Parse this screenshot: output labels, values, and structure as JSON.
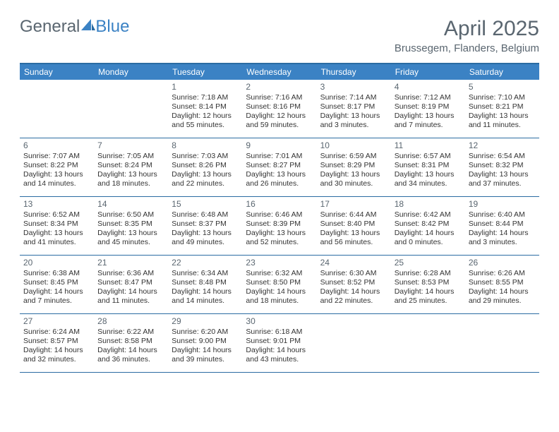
{
  "brand": {
    "word1": "General",
    "word2": "Blue"
  },
  "title": "April 2025",
  "location": "Brussegem, Flanders, Belgium",
  "colors": {
    "header_bg": "#3b82c4",
    "rule": "#2b6ca3",
    "text_muted": "#5a6670",
    "text": "#333333",
    "bg": "#ffffff"
  },
  "day_headers": [
    "Sunday",
    "Monday",
    "Tuesday",
    "Wednesday",
    "Thursday",
    "Friday",
    "Saturday"
  ],
  "weeks": [
    [
      null,
      null,
      {
        "n": "1",
        "sr": "Sunrise: 7:18 AM",
        "ss": "Sunset: 8:14 PM",
        "dl": "Daylight: 12 hours and 55 minutes."
      },
      {
        "n": "2",
        "sr": "Sunrise: 7:16 AM",
        "ss": "Sunset: 8:16 PM",
        "dl": "Daylight: 12 hours and 59 minutes."
      },
      {
        "n": "3",
        "sr": "Sunrise: 7:14 AM",
        "ss": "Sunset: 8:17 PM",
        "dl": "Daylight: 13 hours and 3 minutes."
      },
      {
        "n": "4",
        "sr": "Sunrise: 7:12 AM",
        "ss": "Sunset: 8:19 PM",
        "dl": "Daylight: 13 hours and 7 minutes."
      },
      {
        "n": "5",
        "sr": "Sunrise: 7:10 AM",
        "ss": "Sunset: 8:21 PM",
        "dl": "Daylight: 13 hours and 11 minutes."
      }
    ],
    [
      {
        "n": "6",
        "sr": "Sunrise: 7:07 AM",
        "ss": "Sunset: 8:22 PM",
        "dl": "Daylight: 13 hours and 14 minutes."
      },
      {
        "n": "7",
        "sr": "Sunrise: 7:05 AM",
        "ss": "Sunset: 8:24 PM",
        "dl": "Daylight: 13 hours and 18 minutes."
      },
      {
        "n": "8",
        "sr": "Sunrise: 7:03 AM",
        "ss": "Sunset: 8:26 PM",
        "dl": "Daylight: 13 hours and 22 minutes."
      },
      {
        "n": "9",
        "sr": "Sunrise: 7:01 AM",
        "ss": "Sunset: 8:27 PM",
        "dl": "Daylight: 13 hours and 26 minutes."
      },
      {
        "n": "10",
        "sr": "Sunrise: 6:59 AM",
        "ss": "Sunset: 8:29 PM",
        "dl": "Daylight: 13 hours and 30 minutes."
      },
      {
        "n": "11",
        "sr": "Sunrise: 6:57 AM",
        "ss": "Sunset: 8:31 PM",
        "dl": "Daylight: 13 hours and 34 minutes."
      },
      {
        "n": "12",
        "sr": "Sunrise: 6:54 AM",
        "ss": "Sunset: 8:32 PM",
        "dl": "Daylight: 13 hours and 37 minutes."
      }
    ],
    [
      {
        "n": "13",
        "sr": "Sunrise: 6:52 AM",
        "ss": "Sunset: 8:34 PM",
        "dl": "Daylight: 13 hours and 41 minutes."
      },
      {
        "n": "14",
        "sr": "Sunrise: 6:50 AM",
        "ss": "Sunset: 8:35 PM",
        "dl": "Daylight: 13 hours and 45 minutes."
      },
      {
        "n": "15",
        "sr": "Sunrise: 6:48 AM",
        "ss": "Sunset: 8:37 PM",
        "dl": "Daylight: 13 hours and 49 minutes."
      },
      {
        "n": "16",
        "sr": "Sunrise: 6:46 AM",
        "ss": "Sunset: 8:39 PM",
        "dl": "Daylight: 13 hours and 52 minutes."
      },
      {
        "n": "17",
        "sr": "Sunrise: 6:44 AM",
        "ss": "Sunset: 8:40 PM",
        "dl": "Daylight: 13 hours and 56 minutes."
      },
      {
        "n": "18",
        "sr": "Sunrise: 6:42 AM",
        "ss": "Sunset: 8:42 PM",
        "dl": "Daylight: 14 hours and 0 minutes."
      },
      {
        "n": "19",
        "sr": "Sunrise: 6:40 AM",
        "ss": "Sunset: 8:44 PM",
        "dl": "Daylight: 14 hours and 3 minutes."
      }
    ],
    [
      {
        "n": "20",
        "sr": "Sunrise: 6:38 AM",
        "ss": "Sunset: 8:45 PM",
        "dl": "Daylight: 14 hours and 7 minutes."
      },
      {
        "n": "21",
        "sr": "Sunrise: 6:36 AM",
        "ss": "Sunset: 8:47 PM",
        "dl": "Daylight: 14 hours and 11 minutes."
      },
      {
        "n": "22",
        "sr": "Sunrise: 6:34 AM",
        "ss": "Sunset: 8:48 PM",
        "dl": "Daylight: 14 hours and 14 minutes."
      },
      {
        "n": "23",
        "sr": "Sunrise: 6:32 AM",
        "ss": "Sunset: 8:50 PM",
        "dl": "Daylight: 14 hours and 18 minutes."
      },
      {
        "n": "24",
        "sr": "Sunrise: 6:30 AM",
        "ss": "Sunset: 8:52 PM",
        "dl": "Daylight: 14 hours and 22 minutes."
      },
      {
        "n": "25",
        "sr": "Sunrise: 6:28 AM",
        "ss": "Sunset: 8:53 PM",
        "dl": "Daylight: 14 hours and 25 minutes."
      },
      {
        "n": "26",
        "sr": "Sunrise: 6:26 AM",
        "ss": "Sunset: 8:55 PM",
        "dl": "Daylight: 14 hours and 29 minutes."
      }
    ],
    [
      {
        "n": "27",
        "sr": "Sunrise: 6:24 AM",
        "ss": "Sunset: 8:57 PM",
        "dl": "Daylight: 14 hours and 32 minutes."
      },
      {
        "n": "28",
        "sr": "Sunrise: 6:22 AM",
        "ss": "Sunset: 8:58 PM",
        "dl": "Daylight: 14 hours and 36 minutes."
      },
      {
        "n": "29",
        "sr": "Sunrise: 6:20 AM",
        "ss": "Sunset: 9:00 PM",
        "dl": "Daylight: 14 hours and 39 minutes."
      },
      {
        "n": "30",
        "sr": "Sunrise: 6:18 AM",
        "ss": "Sunset: 9:01 PM",
        "dl": "Daylight: 14 hours and 43 minutes."
      },
      null,
      null,
      null
    ]
  ]
}
